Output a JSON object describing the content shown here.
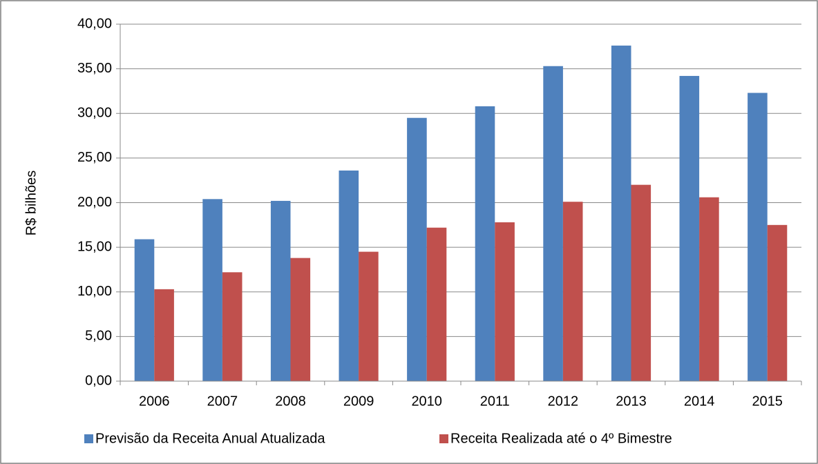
{
  "chart_data": {
    "type": "bar",
    "y_axis_label": "R$ bilhões",
    "categories": [
      "2006",
      "2007",
      "2008",
      "2009",
      "2010",
      "2011",
      "2012",
      "2013",
      "2014",
      "2015"
    ],
    "series": [
      {
        "name": "Previsão da Receita Anual Atualizada",
        "color": "#4f81bd",
        "values": [
          15.9,
          20.4,
          20.2,
          23.6,
          29.5,
          30.8,
          35.3,
          37.6,
          34.2,
          32.3
        ]
      },
      {
        "name": "Receita Realizada até o 4º Bimestre",
        "color": "#c0504d",
        "values": [
          10.3,
          12.2,
          13.8,
          14.5,
          17.2,
          17.8,
          20.1,
          22.0,
          20.6,
          17.5
        ]
      }
    ],
    "ylim": [
      0,
      40
    ],
    "yticks": [
      {
        "value": 0,
        "label": "0,00"
      },
      {
        "value": 5,
        "label": "5,00"
      },
      {
        "value": 10,
        "label": "10,00"
      },
      {
        "value": 15,
        "label": "15,00"
      },
      {
        "value": 20,
        "label": "20,00"
      },
      {
        "value": 25,
        "label": "25,00"
      },
      {
        "value": 30,
        "label": "30,00"
      },
      {
        "value": 35,
        "label": "35,00"
      },
      {
        "value": 40,
        "label": "40,00"
      }
    ],
    "grid": true,
    "legend": "bottom"
  }
}
